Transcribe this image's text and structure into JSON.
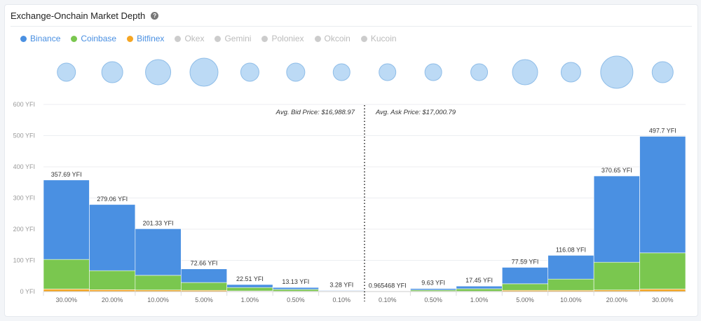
{
  "header": {
    "title": "Exchange-Onchain Market Depth",
    "help_icon": "?"
  },
  "legend": [
    {
      "label": "Binance",
      "color": "#4a90e2",
      "active": true
    },
    {
      "label": "Coinbase",
      "color": "#7ac74f",
      "active": true
    },
    {
      "label": "Bitfinex",
      "color": "#f5a623",
      "active": true
    },
    {
      "label": "Okex",
      "color": "#cccccc",
      "active": false
    },
    {
      "label": "Gemini",
      "color": "#cccccc",
      "active": false
    },
    {
      "label": "Poloniex",
      "color": "#cccccc",
      "active": false
    },
    {
      "label": "Okcoin",
      "color": "#cccccc",
      "active": false
    },
    {
      "label": "Kucoin",
      "color": "#cccccc",
      "active": false
    }
  ],
  "chart_data": {
    "type": "bar",
    "stacked": true,
    "categories": [
      "30.00%",
      "20.00%",
      "10.00%",
      "5.00%",
      "1.00%",
      "0.50%",
      "0.10%",
      "0.10%",
      "0.50%",
      "1.00%",
      "5.00%",
      "10.00%",
      "20.00%",
      "30.00%"
    ],
    "sides": [
      "bid",
      "bid",
      "bid",
      "bid",
      "bid",
      "bid",
      "bid",
      "ask",
      "ask",
      "ask",
      "ask",
      "ask",
      "ask",
      "ask"
    ],
    "totals": [
      357.69,
      279.06,
      201.33,
      72.66,
      22.51,
      13.13,
      3.28,
      0.965468,
      9.63,
      17.45,
      77.59,
      116.08,
      370.65,
      497.7
    ],
    "total_labels": [
      "357.69 YFI",
      "279.06 YFI",
      "201.33 YFI",
      "72.66 YFI",
      "22.51 YFI",
      "13.13 YFI",
      "3.28 YFI",
      "0.965468 YFI",
      "9.63 YFI",
      "17.45 YFI",
      "77.59 YFI",
      "116.08 YFI",
      "370.65 YFI",
      "497.7 YFI"
    ],
    "series": [
      {
        "name": "Bitfinex",
        "color": "#f5a623",
        "values": [
          8,
          6,
          5,
          4,
          2,
          1,
          0.5,
          0.2,
          1,
          1,
          4,
          4,
          5,
          8
        ]
      },
      {
        "name": "Coinbase",
        "color": "#7ac74f",
        "values": [
          95,
          61,
          47,
          25,
          11,
          6,
          1,
          0.5,
          4,
          8,
          21,
          36,
          89,
          116
        ]
      },
      {
        "name": "Binance",
        "color": "#4a90e2",
        "values": [
          254.69,
          212.06,
          149.33,
          43.66,
          9.51,
          6.13,
          1.78,
          0.265468,
          4.63,
          8.45,
          52.59,
          76.08,
          276.65,
          373.7
        ]
      }
    ],
    "bubble_sizes": [
      13,
      15,
      18,
      20,
      13,
      13,
      12,
      12,
      12,
      12,
      18,
      14,
      23,
      15
    ],
    "y_ticks": [
      "0 YFI",
      "100 YFI",
      "200 YFI",
      "300 YFI",
      "400 YFI",
      "500 YFI",
      "600 YFI"
    ],
    "ylim": [
      0,
      600
    ],
    "annotations": {
      "bid": "Avg. Bid Price: $16,988.97",
      "ask": "Avg. Ask Price: $17,000.79"
    },
    "grid": true
  }
}
